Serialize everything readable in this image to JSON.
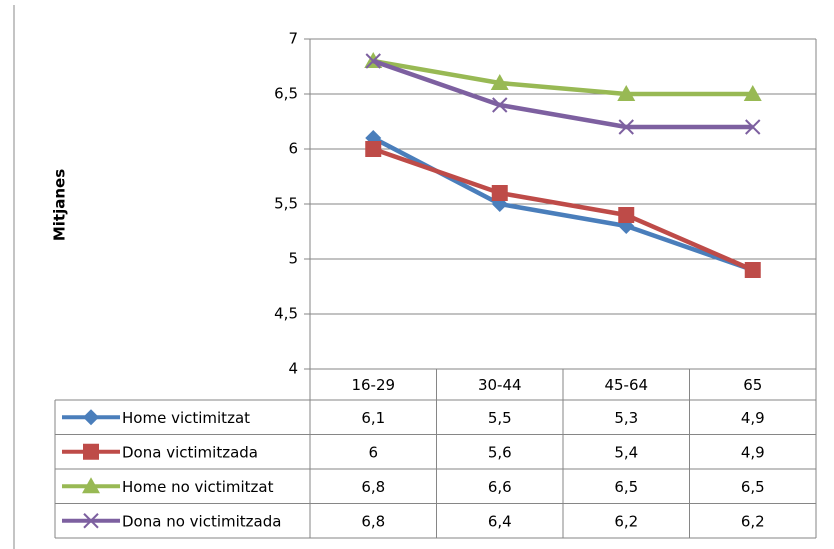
{
  "chart_data": {
    "type": "line",
    "y_label": "Mitjanes",
    "categories": [
      "16-29",
      "30-44",
      "45-64",
      "65"
    ],
    "series": [
      {
        "name": "Home victimitzat",
        "color": "#4a7ebb",
        "marker": "diamond",
        "values": [
          6.1,
          5.5,
          5.3,
          4.9
        ],
        "value_labels": [
          "6,1",
          "5,5",
          "5,3",
          "4,9"
        ]
      },
      {
        "name": "Dona victimitzada",
        "color": "#be4b48",
        "marker": "square",
        "values": [
          6,
          5.6,
          5.4,
          4.9
        ],
        "value_labels": [
          "6",
          "5,6",
          "5,4",
          "4,9"
        ]
      },
      {
        "name": "Home no victimitzat",
        "color": "#98b954",
        "marker": "triangle",
        "values": [
          6.8,
          6.6,
          6.5,
          6.5
        ],
        "value_labels": [
          "6,8",
          "6,6",
          "6,5",
          "6,5"
        ]
      },
      {
        "name": "Dona no victimitzada",
        "color": "#7d60a0",
        "marker": "x",
        "values": [
          6.8,
          6.4,
          6.2,
          6.2
        ],
        "value_labels": [
          "6,8",
          "6,4",
          "6,2",
          "6,2"
        ]
      }
    ],
    "ylim": [
      4,
      7
    ],
    "yticks": [
      4,
      {
        "value": 4.5,
        "label": "4,5"
      },
      5,
      {
        "value": 5.5,
        "label": "5,5"
      },
      6,
      {
        "value": 6.5,
        "label": "6,5"
      },
      7
    ],
    "grid": true
  }
}
